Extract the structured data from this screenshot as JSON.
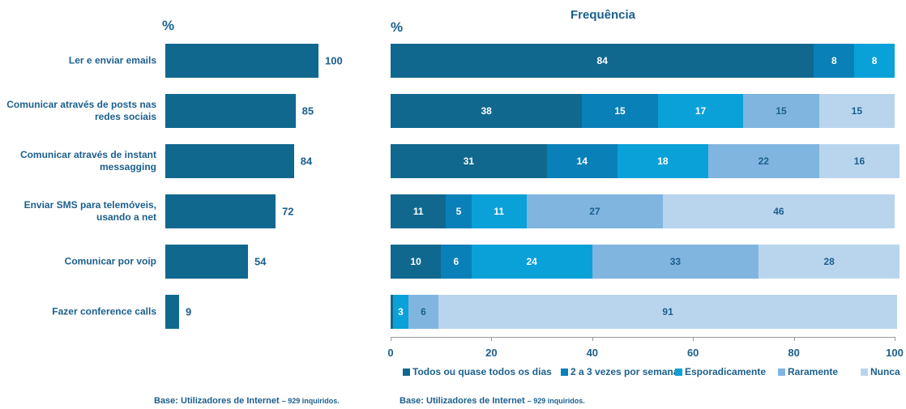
{
  "chart_data": [
    {
      "type": "hbar",
      "axis_label": "%",
      "categories": [
        "Ler e enviar emails",
        "Comunicar através de posts nas redes sociais",
        "Comunicar através de instant messagging",
        "Enviar SMS para telemóveis, usando a net",
        "Comunicar por voip",
        "Fazer conference calls"
      ],
      "values": [
        100,
        85,
        84,
        72,
        54,
        9
      ],
      "color": "#11688f",
      "xlim": [
        0,
        100
      ],
      "note": "Base: Utilizadores de Internet",
      "note_detail": "– 929 inquiridos."
    },
    {
      "type": "stacked_hbar",
      "title": "Frequência",
      "axis_label": "%",
      "categories": [
        null,
        null,
        null,
        null,
        null,
        null
      ],
      "series": [
        {
          "name": "Todos ou quase todos os dias",
          "color": "#11688f",
          "values": [
            84,
            38,
            31,
            11,
            10,
            0.5
          ]
        },
        {
          "name": "2 a 3 vezes por semana",
          "color": "#0a80b8",
          "values": [
            8,
            15,
            14,
            5,
            6,
            null
          ]
        },
        {
          "name": "Esporadicamente",
          "color": "#0aa1d9",
          "values": [
            8,
            17,
            18,
            11,
            24,
            3
          ]
        },
        {
          "name": "Raramente",
          "color": "#80b5df",
          "values": [
            null,
            15,
            22,
            27,
            33,
            6
          ]
        },
        {
          "name": "Nunca",
          "color": "#b9d5ee",
          "values": [
            null,
            15,
            16,
            46,
            28,
            91
          ]
        }
      ],
      "xlim": [
        0,
        100
      ],
      "xticks": [
        0,
        20,
        40,
        60,
        80,
        100
      ],
      "note": "Base: Utilizadores de Internet",
      "note_detail": "– 929 inquiridos."
    }
  ]
}
